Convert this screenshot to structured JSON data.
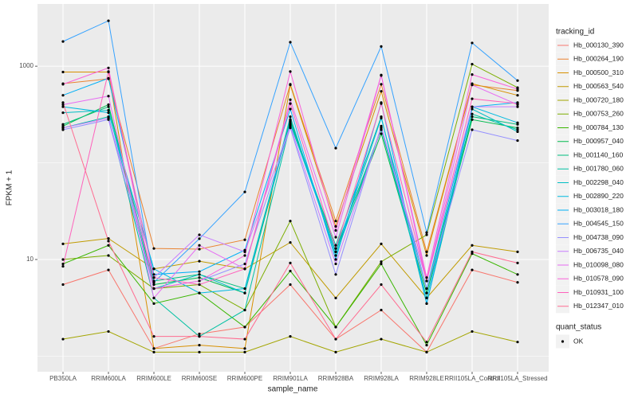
{
  "chart_data": {
    "type": "line",
    "x_label": "sample_name",
    "y_label": "FPKM + 1",
    "log_y": true,
    "grid": true,
    "legend_position": "right",
    "legend_title": "tracking_id",
    "point_legend": {
      "title": "quant_status",
      "labels": [
        "OK"
      ],
      "color": "#000000"
    },
    "categories": [
      "PB350LA",
      "RRIM600LA",
      "RRIM600LE",
      "RRIM600SE",
      "RRIM600PE",
      "RRIM901LA",
      "RRIM928BA",
      "RRIM928LA",
      "RRIM928LE",
      "RRII105LA_Control",
      "RRII105LA_Stressed"
    ],
    "ylim": [
      0.69,
      4400
    ],
    "yticks": [
      10,
      1000
    ],
    "minor_yticks": [
      1,
      100
    ],
    "series": [
      {
        "name": "Hb_000130_390",
        "color": "#F8766D",
        "values": [
          5.5,
          7.8,
          1.2,
          1.7,
          2.0,
          5.5,
          1.5,
          3.0,
          1.1,
          7.8,
          5.8
        ]
      },
      {
        "name": "Hb_000264_190",
        "color": "#EA8331",
        "values": [
          660,
          740,
          13,
          12.8,
          16,
          650,
          25,
          650,
          12,
          640,
          560
        ]
      },
      {
        "name": "Hb_000500_310",
        "color": "#D89000",
        "values": [
          870,
          870,
          1.2,
          1.3,
          1.2,
          640,
          22,
          550,
          11,
          660,
          500
        ]
      },
      {
        "name": "Hb_000563_540",
        "color": "#C09B00",
        "values": [
          14.5,
          16.5,
          8,
          9.6,
          8,
          15,
          4,
          14.5,
          4,
          14,
          12
        ]
      },
      {
        "name": "Hb_000720_180",
        "color": "#A3A500",
        "values": [
          1.5,
          1.8,
          1.1,
          1.1,
          1.1,
          1.6,
          1.1,
          1.5,
          1.1,
          1.8,
          1.4
        ]
      },
      {
        "name": "Hb_000753_260",
        "color": "#7CAE00",
        "values": [
          10,
          11,
          5,
          5.5,
          3,
          25,
          2,
          9.5,
          18,
          1050,
          600
        ]
      },
      {
        "name": "Hb_000784_130",
        "color": "#39B600",
        "values": [
          9,
          14,
          3.5,
          4.5,
          2,
          7.6,
          2,
          9,
          1.3,
          11.5,
          7
        ]
      },
      {
        "name": "Hb_000957_040",
        "color": "#00BB4E",
        "values": [
          240,
          400,
          5.5,
          6.5,
          4.5,
          270,
          12,
          200,
          4.5,
          280,
          230
        ]
      },
      {
        "name": "Hb_001140_160",
        "color": "#00BF7D",
        "values": [
          250,
          380,
          6,
          7,
          5,
          280,
          13,
          220,
          5,
          300,
          250
        ]
      },
      {
        "name": "Hb_001780_060",
        "color": "#00C1A3",
        "values": [
          230,
          300,
          4,
          1.6,
          3,
          250,
          14,
          300,
          3.5,
          320,
          220
        ]
      },
      {
        "name": "Hb_002298_040",
        "color": "#00BFC4",
        "values": [
          330,
          350,
          5,
          7,
          4.5,
          300,
          11,
          230,
          4,
          360,
          210
        ]
      },
      {
        "name": "Hb_002890_220",
        "color": "#00BAE0",
        "values": [
          380,
          330,
          8,
          4.5,
          5,
          260,
          12,
          290,
          5,
          380,
          260
        ]
      },
      {
        "name": "Hb_003018_180",
        "color": "#00B0F6",
        "values": [
          500,
          750,
          7,
          7.5,
          12.5,
          360,
          10,
          420,
          3.5,
          380,
          420
        ]
      },
      {
        "name": "Hb_004545_150",
        "color": "#35A2FF",
        "values": [
          1800,
          2950,
          5.8,
          16.4,
          50,
          1770,
          142,
          1600,
          19,
          1740,
          710
        ]
      },
      {
        "name": "Hb_004738_090",
        "color": "#9590FF",
        "values": [
          220,
          280,
          5,
          6,
          9,
          230,
          7,
          240,
          5,
          220,
          170
        ]
      },
      {
        "name": "Hb_006735_040",
        "color": "#C77CFF",
        "values": [
          230,
          290,
          6.5,
          18,
          12,
          240,
          9,
          230,
          6,
          380,
          380
        ]
      },
      {
        "name": "Hb_010098_080",
        "color": "#E76BF3",
        "values": [
          400,
          490,
          4,
          14,
          8,
          450,
          17,
          800,
          6,
          640,
          400
        ]
      },
      {
        "name": "Hb_010578_090",
        "color": "#FA62DB",
        "values": [
          650,
          960,
          5,
          6,
          11,
          880,
          20,
          810,
          6.5,
          820,
          580
        ]
      },
      {
        "name": "Hb_010931_100",
        "color": "#FF62BC",
        "values": [
          8.5,
          880,
          6.5,
          5.5,
          8,
          410,
          13,
          410,
          6,
          460,
          410
        ]
      },
      {
        "name": "Hb_012347_010",
        "color": "#FF6C91",
        "values": [
          420,
          15.5,
          1.6,
          1.6,
          1.5,
          9.2,
          1.5,
          5.5,
          1.4,
          12,
          9.2
        ]
      }
    ]
  }
}
